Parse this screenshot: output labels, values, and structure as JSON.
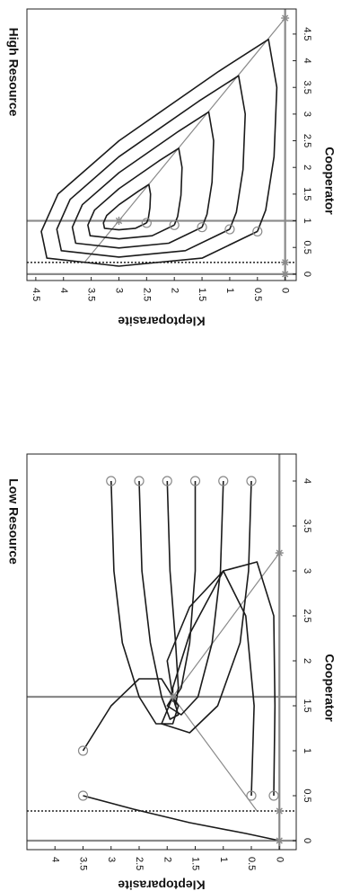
{
  "chart_data": [
    {
      "type": "line",
      "title": "High Resource",
      "x_label": "Cooperator",
      "y_label": "Kleptoparasite",
      "xlim": [
        -0.12,
        4.97
      ],
      "ylim": [
        -0.2,
        4.66
      ],
      "xticks": [
        0,
        0.5,
        1,
        1.5,
        2,
        2.5,
        3,
        3.5,
        4,
        4.5
      ],
      "yticks": [
        0,
        0.5,
        1,
        1.5,
        2,
        2.5,
        3,
        3.5,
        4,
        4.5
      ],
      "reference_lines": [
        {
          "axis": "x",
          "value": 0,
          "style": "solid",
          "color": "#8a8a8a"
        },
        {
          "axis": "x",
          "value": 0.22,
          "style": "dotted",
          "color": "#222222"
        },
        {
          "axis": "x",
          "value": 1,
          "style": "solid",
          "color": "#8a8a8a"
        },
        {
          "axis": "y",
          "value": 0,
          "style": "solid",
          "color": "#8a8a8a"
        }
      ],
      "series": [
        {
          "color": "#8a8a8a",
          "start_marker": false,
          "x": [
            0.22,
            1,
            4.8
          ],
          "values": [
            3.62,
            3,
            0
          ]
        },
        {
          "color": "#1a1a1a",
          "start_marker": true,
          "x": [
            0.8,
            0.3,
            0.15,
            0.3,
            0.8,
            1.5,
            2.5,
            3.8,
            4.4,
            3.5,
            2.2,
            1.2,
            0.8
          ],
          "values": [
            0.5,
            1.5,
            3,
            4.3,
            4.4,
            4.1,
            3,
            1.2,
            0.3,
            0.15,
            0.2,
            0.35,
            0.5
          ]
        },
        {
          "color": "#1a1a1a",
          "start_marker": true,
          "x": [
            0.84,
            0.44,
            0.32,
            0.44,
            0.84,
            1.4,
            2.2,
            3.24,
            3.72,
            3,
            1.96,
            1.16,
            0.84
          ],
          "values": [
            1,
            1.8,
            3,
            4.04,
            4.12,
            3.88,
            3,
            1.56,
            0.84,
            0.72,
            0.76,
            0.88,
            1
          ]
        },
        {
          "color": "#1a1a1a",
          "start_marker": true,
          "x": [
            0.88,
            0.58,
            0.49,
            0.58,
            0.88,
            1.3,
            1.9,
            2.68,
            3.04,
            2.5,
            1.72,
            1.12,
            0.88
          ],
          "values": [
            1.5,
            2.1,
            3,
            3.78,
            3.84,
            3.66,
            3,
            1.92,
            1.38,
            1.29,
            1.32,
            1.41,
            1.5
          ]
        },
        {
          "color": "#1a1a1a",
          "start_marker": true,
          "x": [
            0.92,
            0.72,
            0.66,
            0.72,
            0.92,
            1.2,
            1.6,
            2.12,
            2.36,
            2,
            1.48,
            1.08,
            0.92
          ],
          "values": [
            2,
            2.4,
            3,
            3.52,
            3.56,
            3.44,
            3,
            2.28,
            1.92,
            1.86,
            1.88,
            1.94,
            2
          ]
        },
        {
          "color": "#1a1a1a",
          "start_marker": true,
          "x": [
            0.96,
            0.86,
            0.83,
            0.86,
            0.96,
            1.1,
            1.3,
            1.56,
            1.68,
            1.5,
            1.24,
            1.04,
            0.96
          ],
          "values": [
            2.5,
            2.7,
            3,
            3.26,
            3.28,
            3.22,
            3,
            2.64,
            2.46,
            2.43,
            2.44,
            2.47,
            2.5
          ]
        }
      ],
      "equilibria": {
        "color": "#8a8a8a",
        "x": [
          0,
          0.22,
          4.8,
          1
        ],
        "values": [
          0,
          0,
          0,
          3
        ]
      }
    },
    {
      "type": "line",
      "title": "Low Resource",
      "x_label": "Cooperator",
      "y_label": "Kleptoparasite",
      "xlim": [
        -0.1,
        4.3
      ],
      "ylim": [
        -0.3,
        4.5
      ],
      "xticks": [
        0,
        0.5,
        1,
        1.5,
        2,
        2.5,
        3,
        3.5,
        4
      ],
      "yticks": [
        0,
        0.5,
        1,
        1.5,
        2,
        2.5,
        3,
        3.5,
        4
      ],
      "reference_lines": [
        {
          "axis": "x",
          "value": 0,
          "style": "solid",
          "color": "#8a8a8a"
        },
        {
          "axis": "x",
          "value": 0.33,
          "style": "dotted",
          "color": "#222222"
        },
        {
          "axis": "x",
          "value": 1.6,
          "style": "solid",
          "color": "#8a8a8a"
        },
        {
          "axis": "y",
          "value": 0,
          "style": "solid",
          "color": "#8a8a8a"
        }
      ],
      "series": [
        {
          "color": "#8a8a8a",
          "start_marker": false,
          "x": [
            0.33,
            1.6,
            3.2
          ],
          "values": [
            0.4,
            1.9,
            0
          ]
        },
        {
          "color": "#1a1a1a",
          "start_marker": true,
          "x": [
            4,
            3,
            2.2,
            1.6,
            1.3,
            1.3,
            1.5,
            1.6
          ],
          "values": [
            3,
            2.95,
            2.8,
            2.5,
            2.2,
            1.9,
            1.8,
            1.9
          ]
        },
        {
          "color": "#1a1a1a",
          "start_marker": true,
          "x": [
            4,
            3,
            2.2,
            1.6,
            1.35,
            1.4,
            1.6
          ],
          "values": [
            2.5,
            2.45,
            2.3,
            2.1,
            1.95,
            1.8,
            1.9
          ]
        },
        {
          "color": "#1a1a1a",
          "start_marker": true,
          "x": [
            4,
            3,
            2.2,
            1.7,
            1.5,
            1.6
          ],
          "values": [
            2,
            1.95,
            1.85,
            1.8,
            1.85,
            1.9
          ]
        },
        {
          "color": "#1a1a1a",
          "start_marker": true,
          "x": [
            4,
            3,
            2.2,
            1.7,
            1.55,
            1.6
          ],
          "values": [
            1.5,
            1.5,
            1.6,
            1.75,
            1.9,
            1.9
          ]
        },
        {
          "color": "#1a1a1a",
          "start_marker": true,
          "x": [
            4,
            3,
            2.2,
            1.6,
            1.4,
            1.5,
            1.6
          ],
          "values": [
            1,
            1.05,
            1.2,
            1.45,
            1.75,
            2,
            1.9
          ]
        },
        {
          "color": "#1a1a1a",
          "start_marker": true,
          "x": [
            4,
            3,
            2.2,
            1.5,
            1.2,
            1.3,
            1.6
          ],
          "values": [
            0.5,
            0.55,
            0.7,
            1.1,
            1.6,
            2.1,
            1.9
          ]
        },
        {
          "color": "#1a1a1a",
          "start_marker": true,
          "x": [
            1,
            1.5,
            1.8,
            1.8,
            1.6
          ],
          "values": [
            3.5,
            3,
            2.5,
            2.1,
            1.9
          ]
        },
        {
          "color": "#1a1a1a",
          "start_marker": true,
          "x": [
            0.5,
            0.35,
            0.2,
            0.08,
            0
          ],
          "values": [
            3.5,
            2.6,
            1.6,
            0.6,
            0
          ]
        },
        {
          "color": "#1a1a1a",
          "start_marker": true,
          "x": [
            0.5,
            1.5,
            2.5,
            3,
            2.6,
            2,
            1.6
          ],
          "values": [
            0.5,
            0.45,
            0.6,
            1,
            1.6,
            2,
            1.9
          ]
        },
        {
          "color": "#1a1a1a",
          "start_marker": true,
          "x": [
            0.5,
            1.5,
            2.5,
            3.1,
            3,
            2.3,
            1.7,
            1.6
          ],
          "values": [
            0.1,
            0.08,
            0.1,
            0.4,
            1,
            1.6,
            1.9,
            1.9
          ]
        }
      ],
      "equilibria": {
        "color": "#8a8a8a",
        "x": [
          0,
          0.33,
          3.2,
          1.6
        ],
        "values": [
          0,
          0,
          0,
          1.9
        ]
      }
    }
  ]
}
